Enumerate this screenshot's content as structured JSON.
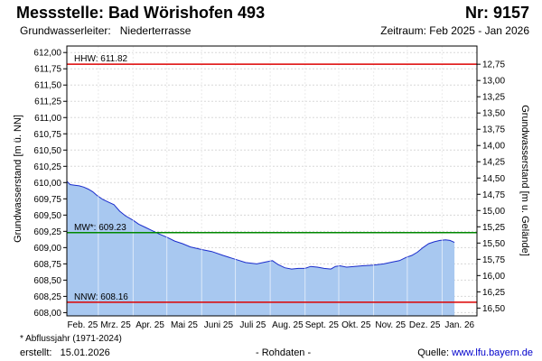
{
  "header": {
    "title": "Messstelle: Bad Wörishofen 493",
    "number": "Nr: 9157",
    "aquifer_label": "Grundwasserleiter:",
    "aquifer_value": "Niederterrasse",
    "period": "Zeitraum: Feb 2025 - Jan 2026"
  },
  "footer": {
    "footnote": "* Abflussjahr (1971-2024)",
    "created_label": "erstellt:",
    "created_date": "15.01.2026",
    "raw_data": "- Rohdaten -",
    "source_label": "Quelle:",
    "source_url": "www.lfu.bayern.de"
  },
  "colors": {
    "fill": "#a8c8f0",
    "line": "#1a2ccc",
    "hhw": "#dd0000",
    "mw": "#008800",
    "nnw": "#dd0000",
    "grid": "#d8d8d8"
  },
  "chart_data": {
    "type": "area",
    "ylabel": "Grundwasserstand [m ü. NN]",
    "ylabel_right": "Grundwasserstand [m u. Gelände]",
    "ylim": [
      607.95,
      612.1
    ],
    "yticks": [
      "612,00",
      "611,75",
      "611,50",
      "611,25",
      "611,00",
      "610,75",
      "610,50",
      "610,25",
      "610,00",
      "609,75",
      "609,50",
      "609,25",
      "609,00",
      "608,75",
      "608,50",
      "608,25",
      "608,00"
    ],
    "yticks_right": [
      "12,75",
      "13,00",
      "13,25",
      "13,50",
      "13,75",
      "14,00",
      "14,25",
      "14,50",
      "14,75",
      "15,00",
      "15,25",
      "15,50",
      "15,75",
      "16,00",
      "16,25",
      "16,50"
    ],
    "right_axis_reference": 624.57,
    "xticks": [
      "Feb. 25",
      "Mrz. 25",
      "Apr. 25",
      "Mai 25",
      "Juni 25",
      "Juli 25",
      "Aug. 25",
      "Sept. 25",
      "Okt. 25",
      "Nov. 25",
      "Dez. 25",
      "Jan. 26"
    ],
    "xrange": [
      "2025-02-01",
      "2026-02-01"
    ],
    "grid": true,
    "reference_lines": [
      {
        "label": "HHW: 611.82",
        "value": 611.82,
        "color": "#dd0000"
      },
      {
        "label": "MW*: 609.23",
        "value": 609.23,
        "color": "#008800"
      },
      {
        "label": "NNW: 608.16",
        "value": 608.16,
        "color": "#dd0000"
      }
    ],
    "series": [
      {
        "x": [
          "2025-02-01",
          "2025-02-04",
          "2025-02-08",
          "2025-02-12",
          "2025-02-16",
          "2025-02-20",
          "2025-02-24",
          "2025-02-28",
          "2025-03-05",
          "2025-03-10",
          "2025-03-15",
          "2025-03-20",
          "2025-03-25",
          "2025-04-01",
          "2025-04-06",
          "2025-04-12",
          "2025-04-18",
          "2025-04-24",
          "2025-05-01",
          "2025-05-08",
          "2025-05-15",
          "2025-05-22",
          "2025-06-01",
          "2025-06-10",
          "2025-06-20",
          "2025-07-01",
          "2025-07-10",
          "2025-07-20",
          "2025-07-28",
          "2025-08-03",
          "2025-08-08",
          "2025-08-14",
          "2025-08-20",
          "2025-08-26",
          "2025-09-01",
          "2025-09-06",
          "2025-09-12",
          "2025-09-18",
          "2025-09-24",
          "2025-09-28",
          "2025-10-02",
          "2025-10-08",
          "2025-10-15",
          "2025-10-22",
          "2025-11-01",
          "2025-11-10",
          "2025-11-18",
          "2025-11-24",
          "2025-11-30",
          "2025-12-05",
          "2025-12-10",
          "2025-12-15",
          "2025-12-20",
          "2025-12-25",
          "2025-12-30",
          "2026-01-04",
          "2026-01-08",
          "2026-01-12"
        ],
        "values": [
          610.02,
          609.97,
          609.96,
          609.95,
          609.93,
          609.9,
          609.86,
          609.8,
          609.74,
          609.7,
          609.66,
          609.56,
          609.49,
          609.42,
          609.36,
          609.31,
          609.26,
          609.21,
          609.16,
          609.1,
          609.06,
          609.01,
          608.97,
          608.94,
          608.88,
          608.82,
          608.77,
          608.75,
          608.78,
          608.8,
          608.74,
          608.69,
          608.67,
          608.68,
          608.68,
          608.71,
          608.7,
          608.68,
          608.67,
          608.71,
          608.72,
          608.7,
          608.71,
          608.72,
          608.73,
          608.75,
          608.78,
          608.8,
          608.85,
          608.88,
          608.93,
          609.0,
          609.06,
          609.09,
          609.11,
          609.12,
          609.11,
          609.08
        ]
      }
    ]
  }
}
